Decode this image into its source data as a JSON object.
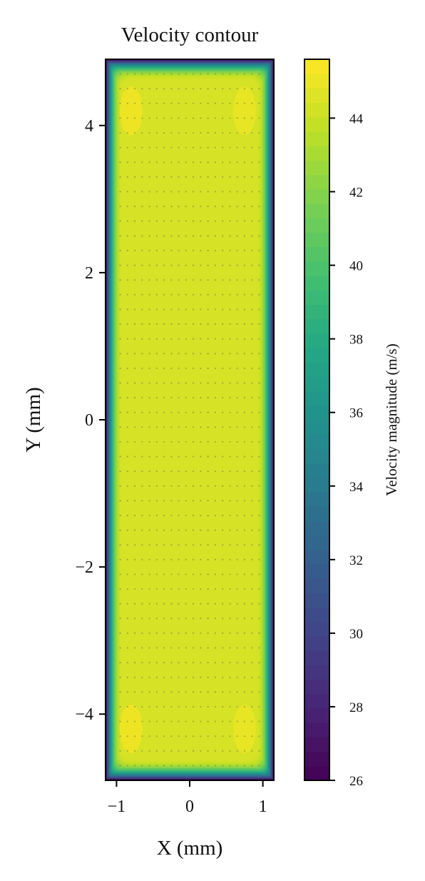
{
  "chart_data": {
    "type": "heatmap",
    "title": "Velocity contour",
    "xlabel": "X (mm)",
    "ylabel": "Y (mm)",
    "xlim": [
      -1.15,
      1.15
    ],
    "ylim": [
      -4.9,
      4.9
    ],
    "x_ticks": [
      -1,
      0,
      1
    ],
    "x_tick_labels": [
      "−1",
      "0",
      "1"
    ],
    "y_ticks": [
      -4,
      -2,
      0,
      2,
      4
    ],
    "y_tick_labels": [
      "−4",
      "−2",
      "0",
      "2",
      "4"
    ],
    "colormap": "viridis",
    "colorbar": {
      "label": "Velocity magnitude (m/s)",
      "range": [
        26,
        45.6
      ],
      "ticks": [
        26,
        28,
        30,
        32,
        34,
        36,
        38,
        40,
        42,
        44
      ],
      "tick_labels": [
        "26",
        "28",
        "30",
        "32",
        "34",
        "36",
        "38",
        "40",
        "42",
        "44"
      ]
    },
    "field": {
      "description_values": "velocity magnitude over rectangular channel cross-section",
      "core_value": 44.4,
      "wall_value": 26.5,
      "local_maxima": [
        {
          "x": -0.8,
          "y": 4.2,
          "value": 45.2
        },
        {
          "x": 0.75,
          "y": 4.2,
          "value": 45.0
        },
        {
          "x": -0.8,
          "y": -4.2,
          "value": 45.2
        },
        {
          "x": 0.75,
          "y": -4.2,
          "value": 45.0
        }
      ]
    },
    "measurement_points": {
      "x_start": -0.95,
      "x_step": 0.1,
      "x_count": 20,
      "y_start": -4.7,
      "y_step": 0.2,
      "y_count": 48
    }
  },
  "colors": {
    "viridis_stops": [
      "#440154",
      "#482475",
      "#414487",
      "#355f8d",
      "#2a788e",
      "#21918c",
      "#22a884",
      "#44bf70",
      "#7ad151",
      "#bddf26",
      "#fde725"
    ]
  }
}
